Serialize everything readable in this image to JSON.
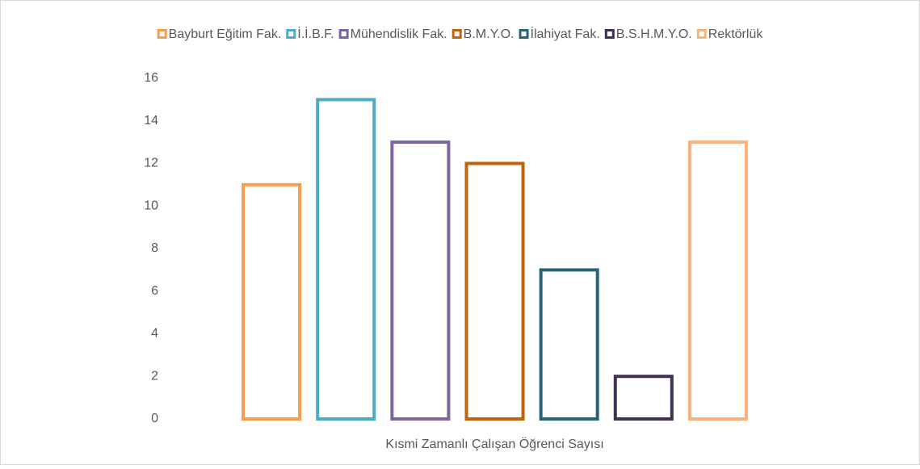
{
  "chart_data": {
    "type": "bar",
    "categories": [
      "Kısmi Zamanlı Çalışan Öğrenci Sayısı"
    ],
    "series": [
      {
        "name": "Bayburt Eğitim Fak.",
        "color": "#f79d52",
        "values": [
          11
        ]
      },
      {
        "name": "İ.İ.B.F.",
        "color": "#4bacc6",
        "values": [
          15
        ]
      },
      {
        "name": "Mühendislik Fak.",
        "color": "#8064a2",
        "values": [
          13
        ]
      },
      {
        "name": "B.M.Y.O.",
        "color": "#c0630f",
        "values": [
          12
        ]
      },
      {
        "name": "İlahiyat Fak.",
        "color": "#2a6374",
        "values": [
          7
        ]
      },
      {
        "name": "B.S.H.M.Y.O.",
        "color": "#403152",
        "values": [
          2
        ]
      },
      {
        "name": "Rektörlük",
        "color": "#fab27a",
        "values": [
          13
        ]
      }
    ],
    "ylim": [
      0,
      16
    ],
    "yticks": [
      0,
      2,
      4,
      6,
      8,
      10,
      12,
      14,
      16
    ],
    "grid": false,
    "legend": "top"
  }
}
